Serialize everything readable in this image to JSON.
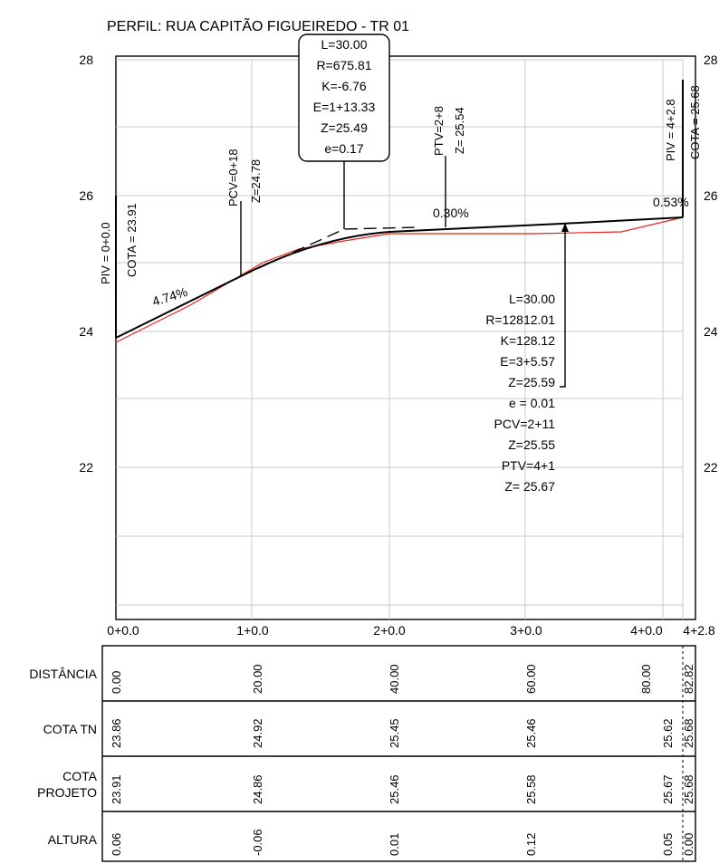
{
  "title": "PERFIL: RUA CAPITÃO FIGUEIREDO - TR 01",
  "y_labels": [
    "28",
    "26",
    "24",
    "22"
  ],
  "x_labels": [
    "0+0.0",
    "1+0.0",
    "2+0.0",
    "3+0.0",
    "4+0.0",
    "4+2.8"
  ],
  "piv_start": {
    "label": "PIV = 0+0.0",
    "cota": "COTA = 23.91"
  },
  "piv_end": {
    "label": "PIV = 4+2.8",
    "cota": "COTA = 25.68"
  },
  "pcv1": {
    "label": "PCV=0+18",
    "z": "Z=24.78"
  },
  "ptv1": {
    "label": "PTV=2+8",
    "z": "Z= 25.54"
  },
  "curve1_box": [
    "L=30.00",
    "R=675.81",
    "K=-6.76",
    "E=1+13.33",
    "Z=25.49",
    "e=0.17"
  ],
  "curve2_box": [
    "L=30.00",
    "R=12812.01",
    "K=128.12",
    "E=3+5.57",
    "Z=25.59",
    "e = 0.01",
    "PCV=2+11",
    "Z=25.55",
    "PTV=4+1",
    "Z= 25.67"
  ],
  "slopes": [
    "4.74%",
    "0.30%",
    "0.53%"
  ],
  "table": {
    "rows": [
      {
        "label": [
          "DISTÂNCIA"
        ],
        "values": [
          "0.00",
          "20.00",
          "40.00",
          "60.00",
          "80.00",
          "82.82"
        ]
      },
      {
        "label": [
          "COTA TN"
        ],
        "values": [
          "23.86",
          "24.92",
          "25.45",
          "25.46",
          "25.62",
          "25.68"
        ]
      },
      {
        "label": [
          "COTA",
          "PROJETO"
        ],
        "values": [
          "23.91",
          "24.86",
          "25.46",
          "25.58",
          "25.67",
          "25.68"
        ]
      },
      {
        "label": [
          "ALTURA"
        ],
        "values": [
          "0.06",
          "-0.06",
          "0.01",
          "0.12",
          "0.05",
          "0.00"
        ]
      }
    ]
  },
  "chart_data": {
    "type": "line",
    "title": "PERFIL: RUA CAPITÃO FIGUEIREDO - TR 01",
    "x": [
      0,
      20,
      40,
      60,
      80,
      82.82
    ],
    "series": [
      {
        "values": [
          23.86,
          24.92,
          25.45,
          25.46,
          25.62,
          25.68
        ],
        "color": "#e8211b"
      },
      {
        "values": [
          23.91,
          24.86,
          25.46,
          25.58,
          25.67,
          25.68
        ],
        "color": "#000000"
      }
    ],
    "ylim": [
      20,
      28
    ],
    "xlim": [
      0,
      82.82
    ]
  },
  "colors": {
    "terrain": "#e8211b",
    "project": "#000000",
    "grid": "#c8c8c8"
  }
}
